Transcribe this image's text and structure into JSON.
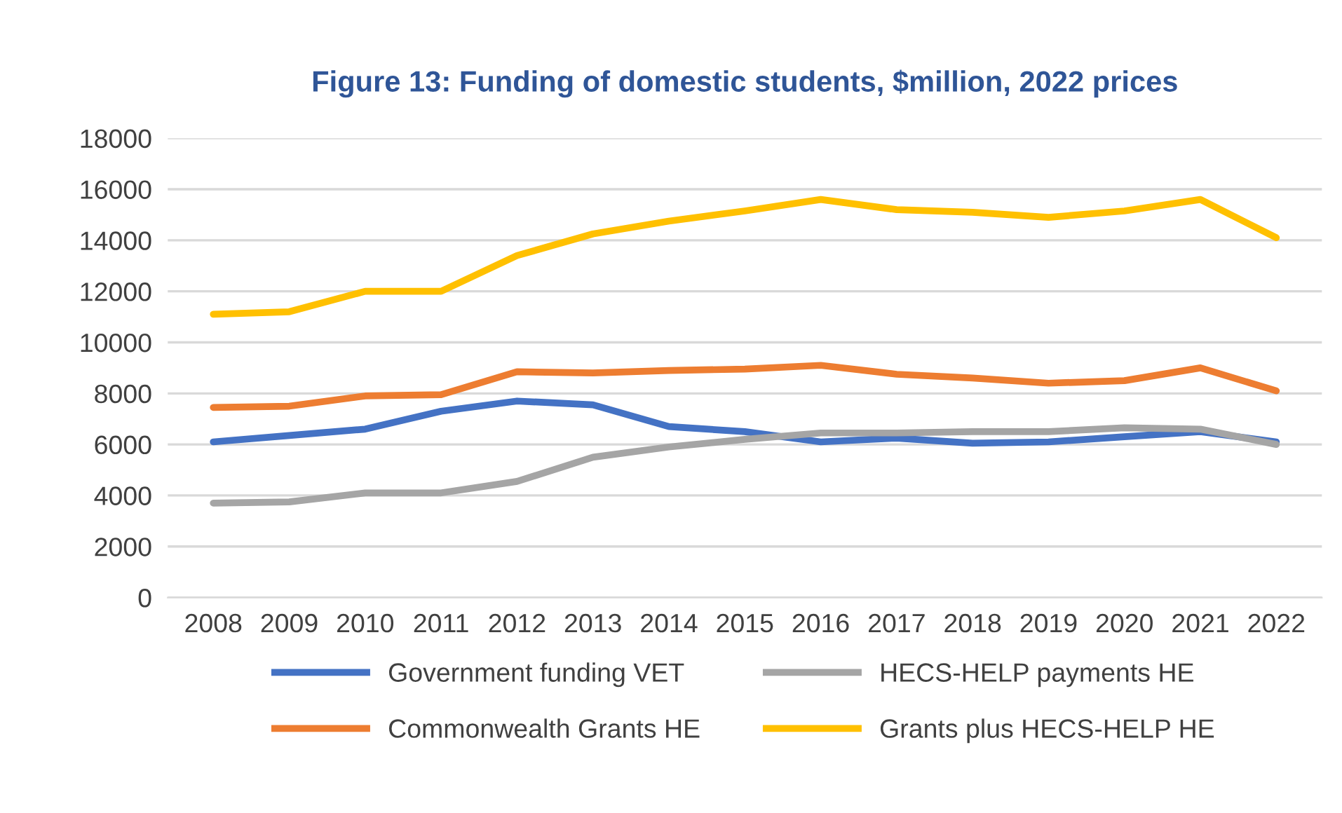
{
  "chart_data": {
    "type": "line",
    "title": "Figure 13: Funding of domestic students, $million, 2022 prices",
    "categories": [
      "2008",
      "2009",
      "2010",
      "2011",
      "2012",
      "2013",
      "2014",
      "2015",
      "2016",
      "2017",
      "2018",
      "2019",
      "2020",
      "2021",
      "2022"
    ],
    "series": [
      {
        "name": "Government funding VET",
        "color": "#4472c4",
        "values": [
          6100,
          6350,
          6600,
          7300,
          7700,
          7550,
          6700,
          6500,
          6100,
          6250,
          6050,
          6100,
          6300,
          6500,
          6100
        ]
      },
      {
        "name": "Commonwealth Grants HE",
        "color": "#ed7d31",
        "values": [
          7450,
          7500,
          7900,
          7950,
          8850,
          8800,
          8900,
          8950,
          9100,
          8750,
          8600,
          8400,
          8500,
          9000,
          8100
        ]
      },
      {
        "name": "HECS-HELP payments HE",
        "color": "#a5a5a5",
        "values": [
          3700,
          3750,
          4100,
          4100,
          4550,
          5500,
          5900,
          6200,
          6450,
          6450,
          6500,
          6500,
          6650,
          6600,
          6000
        ]
      },
      {
        "name": "Grants plus HECS-HELP HE",
        "color": "#ffc000",
        "values": [
          11100,
          11200,
          12000,
          12000,
          13400,
          14250,
          14750,
          15150,
          15600,
          15200,
          15100,
          14900,
          15150,
          15600,
          14100
        ]
      }
    ],
    "ylim": [
      0,
      18000
    ],
    "yticks": [
      0,
      2000,
      4000,
      6000,
      8000,
      10000,
      12000,
      14000,
      16000,
      18000
    ],
    "grid": "y",
    "legend": "bottom",
    "marker": "none",
    "line_style": "solid"
  }
}
